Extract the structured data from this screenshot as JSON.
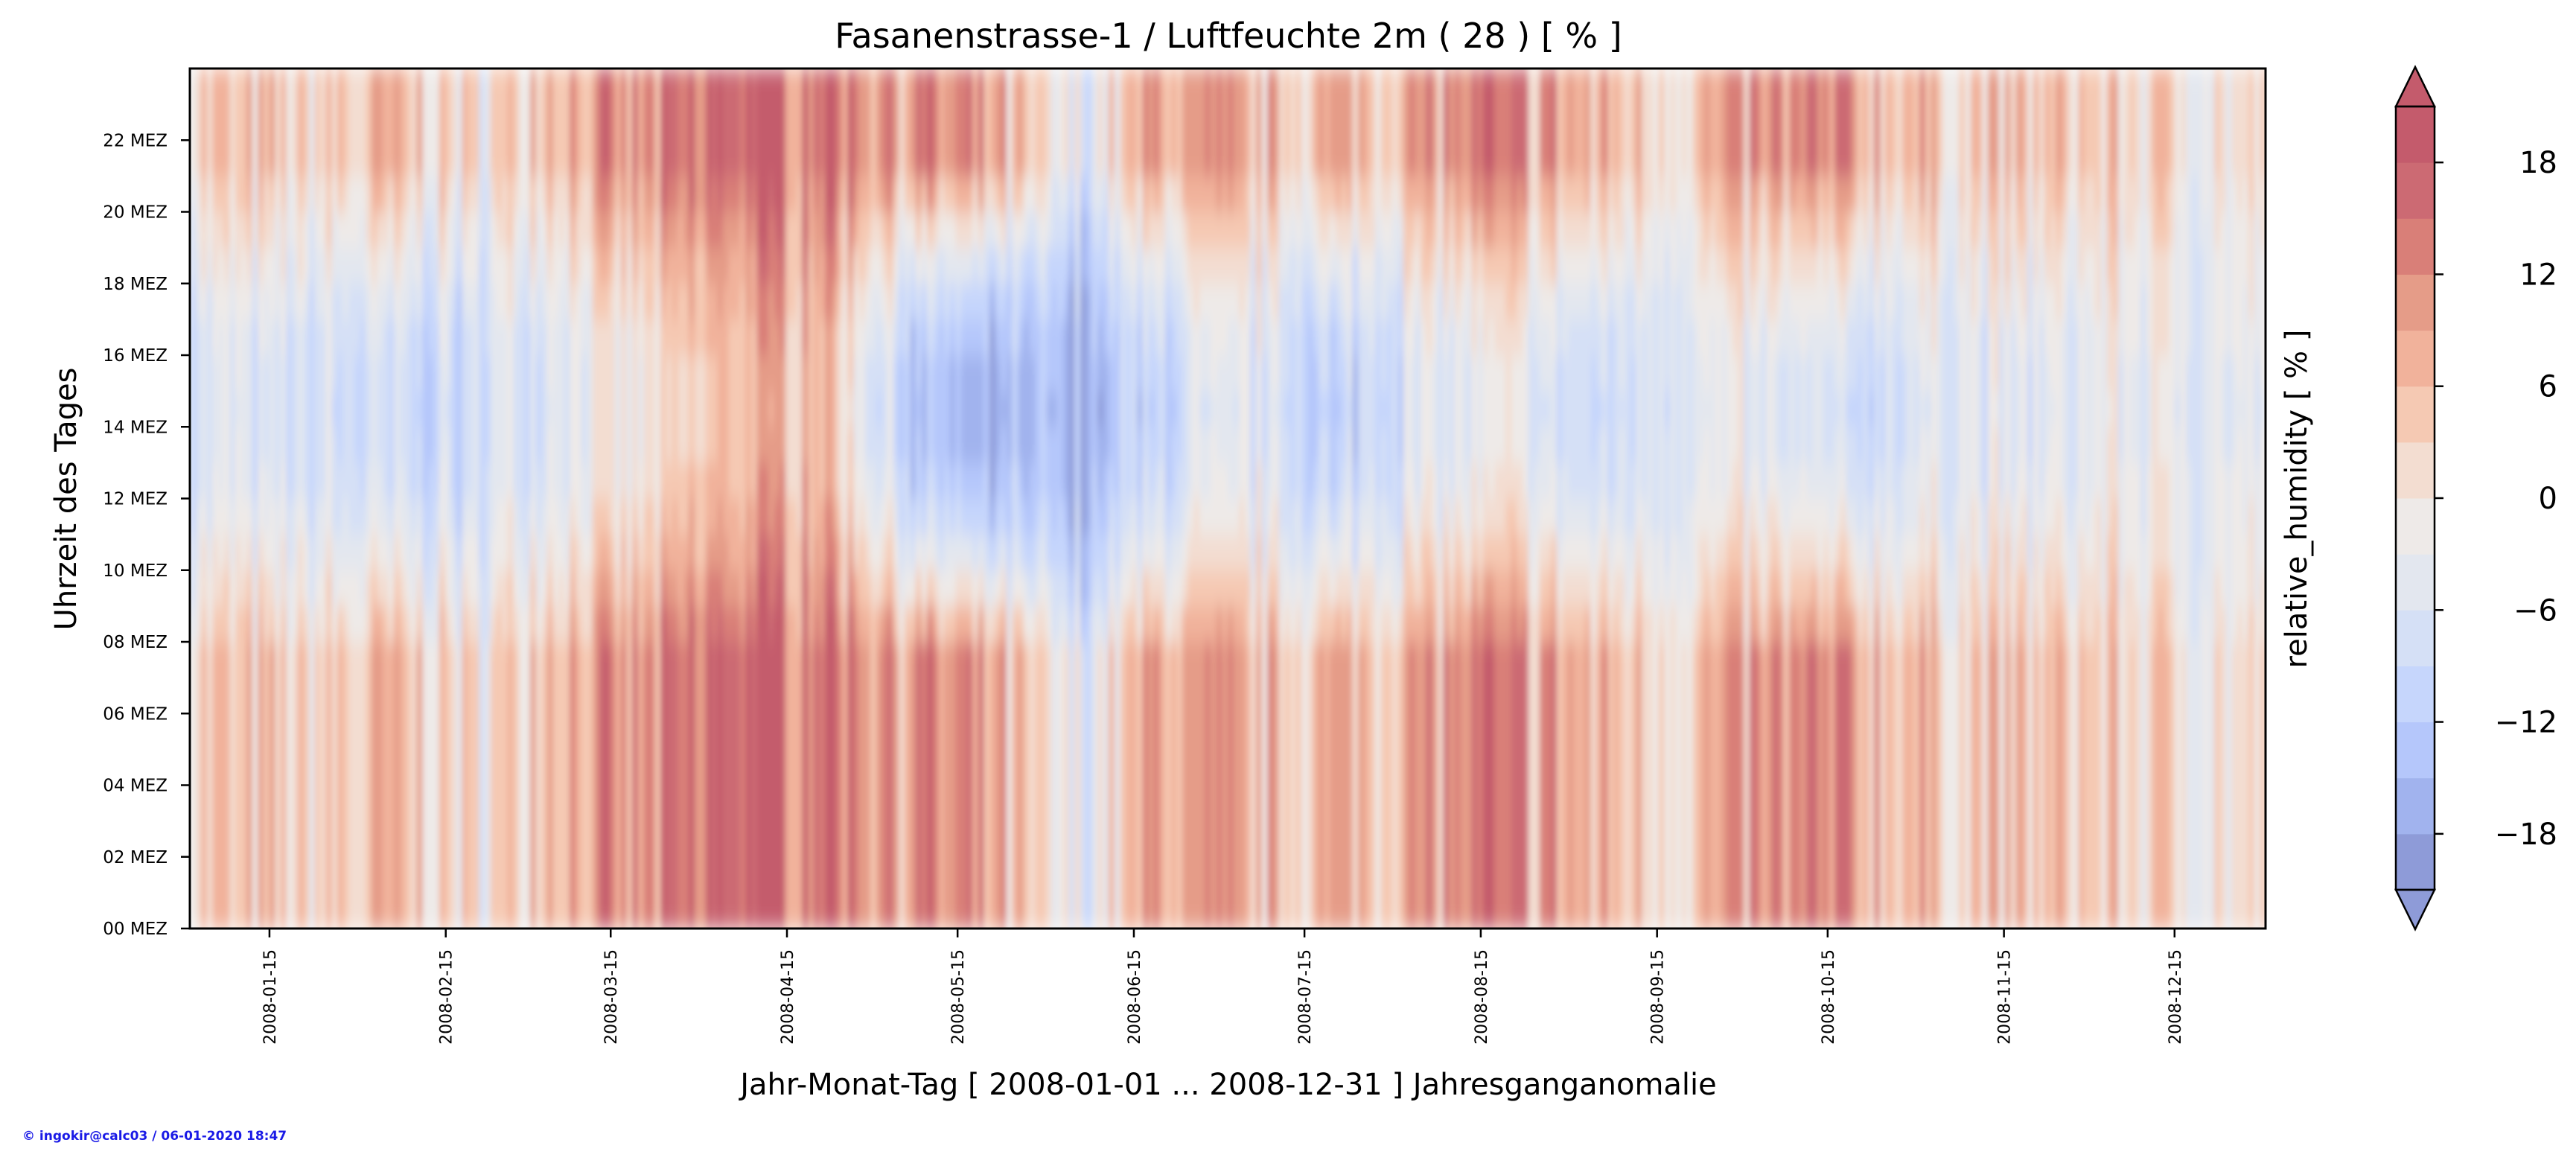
{
  "chart_data": {
    "type": "heatmap",
    "title": "Fasanenstrasse-1 / Luftfeuchte 2m ( 28 ) [ % ]",
    "xlabel": "Jahr-Monat-Tag [ 2008-01-01 ... 2008-12-31 ] Jahresganganomalie",
    "ylabel": "Uhrzeit des Tages",
    "colorbar_label": "relative_humidity [ % ]",
    "x_range": [
      "2008-01-01",
      "2008-12-31"
    ],
    "x_ticks": [
      "2008-01-15",
      "2008-02-15",
      "2008-03-15",
      "2008-04-15",
      "2008-05-15",
      "2008-06-15",
      "2008-07-15",
      "2008-08-15",
      "2008-09-15",
      "2008-10-15",
      "2008-11-15",
      "2008-12-15"
    ],
    "y_range": [
      0,
      24
    ],
    "y_ticks": [
      {
        "hour": 0,
        "label": "00 MEZ"
      },
      {
        "hour": 2,
        "label": "02 MEZ"
      },
      {
        "hour": 4,
        "label": "04 MEZ"
      },
      {
        "hour": 6,
        "label": "06 MEZ"
      },
      {
        "hour": 8,
        "label": "08 MEZ"
      },
      {
        "hour": 10,
        "label": "10 MEZ"
      },
      {
        "hour": 12,
        "label": "12 MEZ"
      },
      {
        "hour": 14,
        "label": "14 MEZ"
      },
      {
        "hour": 16,
        "label": "16 MEZ"
      },
      {
        "hour": 18,
        "label": "18 MEZ"
      },
      {
        "hour": 20,
        "label": "20 MEZ"
      },
      {
        "hour": 22,
        "label": "22 MEZ"
      }
    ],
    "colorbar": {
      "vmin": -21,
      "vmax": 21,
      "levels": [
        -21,
        -18,
        -15,
        -12,
        -9,
        -6,
        -3,
        0,
        3,
        6,
        9,
        12,
        15,
        18,
        21
      ],
      "tick_values": [
        -18,
        -12,
        -6,
        0,
        6,
        12,
        18
      ],
      "tick_labels": [
        "−18",
        "−12",
        "−6",
        "0",
        "6",
        "12",
        "18"
      ],
      "extend": "both",
      "colors": [
        "#8e9bd8",
        "#a1b3ee",
        "#b5c7fb",
        "#c6d6fc",
        "#d5e0f6",
        "#e3e7ef",
        "#eeeae8",
        "#f3ddd1",
        "#f5c9b3",
        "#f1b29b",
        "#e59c88",
        "#d97f78",
        "#cc6a73",
        "#c45b6c"
      ]
    },
    "anomaly_by_date": {
      "description": "estimated daily anomaly (night value, day value) read from the colour map",
      "dates": [
        "01-05",
        "01-20",
        "02-05",
        "02-20",
        "03-05",
        "03-20",
        "04-05",
        "04-20",
        "05-05",
        "05-20",
        "06-05",
        "06-20",
        "07-05",
        "07-20",
        "08-05",
        "08-20",
        "09-05",
        "09-20",
        "10-05",
        "10-20",
        "11-05",
        "11-20",
        "12-05",
        "12-20"
      ],
      "night": [
        4,
        2,
        6,
        0,
        8,
        10,
        18,
        18,
        12,
        8,
        -6,
        10,
        6,
        6,
        10,
        12,
        6,
        4,
        10,
        10,
        4,
        4,
        4,
        0
      ],
      "day": [
        -6,
        -8,
        -10,
        -9,
        -3,
        -2,
        6,
        8,
        -12,
        -16,
        -18,
        -10,
        -6,
        -12,
        -6,
        -3,
        -10,
        -4,
        -6,
        -9,
        -4,
        -6,
        -3,
        -4
      ]
    }
  },
  "credit": "© ingokir@calc03 / 06-01-2020 18:47"
}
